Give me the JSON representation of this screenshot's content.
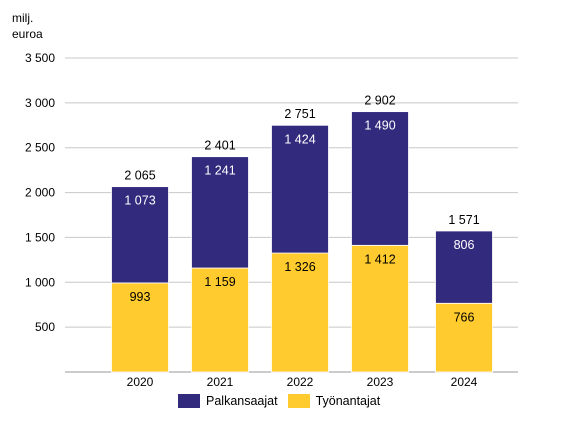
{
  "chart_data": {
    "type": "bar",
    "stacked": true,
    "unit_label": [
      "milj.",
      "euroa"
    ],
    "categories": [
      "2020",
      "2021",
      "2022",
      "2023",
      "2024"
    ],
    "series": [
      {
        "name": "Työnantajat",
        "color": "#ffcb2e",
        "values": [
          993,
          1159,
          1326,
          1412,
          766
        ],
        "labels": [
          "993",
          "1 159",
          "1 326",
          "1 412",
          "766"
        ]
      },
      {
        "name": "Palkansaajat",
        "color": "#322a7c",
        "values": [
          1073,
          1241,
          1424,
          1490,
          806
        ],
        "labels": [
          "1 073",
          "1 241",
          "1 424",
          "1 490",
          "806"
        ]
      }
    ],
    "totals": [
      2065,
      2401,
      2751,
      2902,
      1571
    ],
    "total_labels": [
      "2 065",
      "2 401",
      "2 751",
      "2 902",
      "1 571"
    ],
    "yticks": [
      500,
      1000,
      1500,
      2000,
      2500,
      3000,
      3500
    ],
    "ytick_labels": [
      "500",
      "1 000",
      "1 500",
      "2 000",
      "2 500",
      "3 000",
      "3 500"
    ],
    "ylim": [
      0,
      3500
    ],
    "grid": true,
    "legend_position": "bottom",
    "legend_order": [
      "Palkansaajat",
      "Työnantajat"
    ]
  }
}
